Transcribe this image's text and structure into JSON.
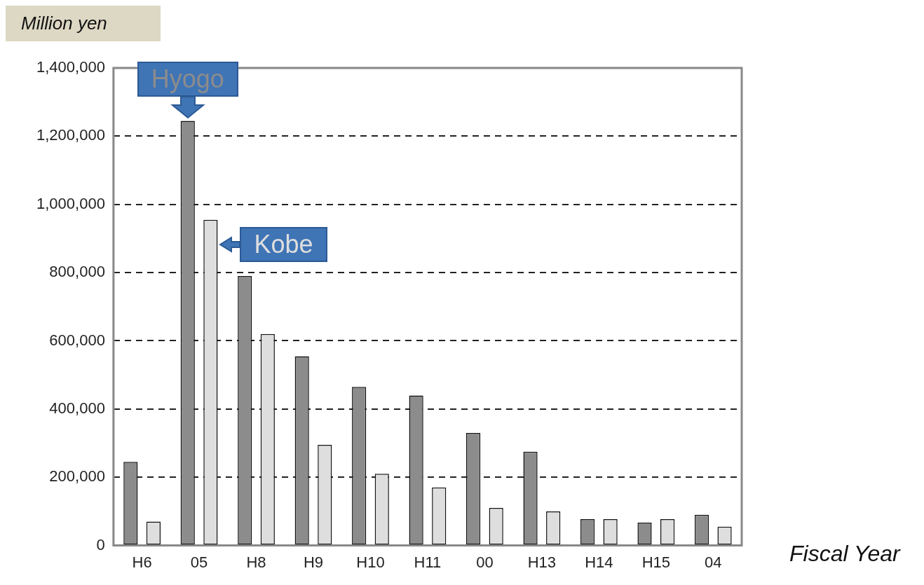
{
  "chart_data": {
    "type": "bar",
    "xlabel": "Fiscal Year",
    "ylabel": "Million yen",
    "categories": [
      "H6",
      "05",
      "H8",
      "H9",
      "H10",
      "H11",
      "00",
      "H13",
      "H14",
      "H15",
      "04"
    ],
    "series": [
      {
        "name": "Hyogo",
        "color": "#8c8c8c",
        "values": [
          245000,
          1245000,
          790000,
          555000,
          465000,
          440000,
          330000,
          275000,
          77000,
          67000,
          90000
        ]
      },
      {
        "name": "Kobe",
        "color": "#dedede",
        "values": [
          70000,
          955000,
          620000,
          295000,
          210000,
          170000,
          110000,
          100000,
          77000,
          77000,
          55000
        ]
      }
    ],
    "ylim": [
      0,
      1400000
    ],
    "yticks": [
      0,
      {
        "value": 200000,
        "label": "200,000"
      },
      {
        "value": 400000,
        "label": "400,000"
      },
      {
        "value": 600000,
        "label": "600,000"
      },
      {
        "value": 800000,
        "label": "800,000"
      },
      {
        "value": 1000000,
        "label": "1,000,000"
      },
      {
        "value": 1200000,
        "label": "1,200,000"
      },
      {
        "value": 1400000,
        "label": "1,400,000"
      }
    ],
    "grid": "y",
    "legend": false
  }
}
